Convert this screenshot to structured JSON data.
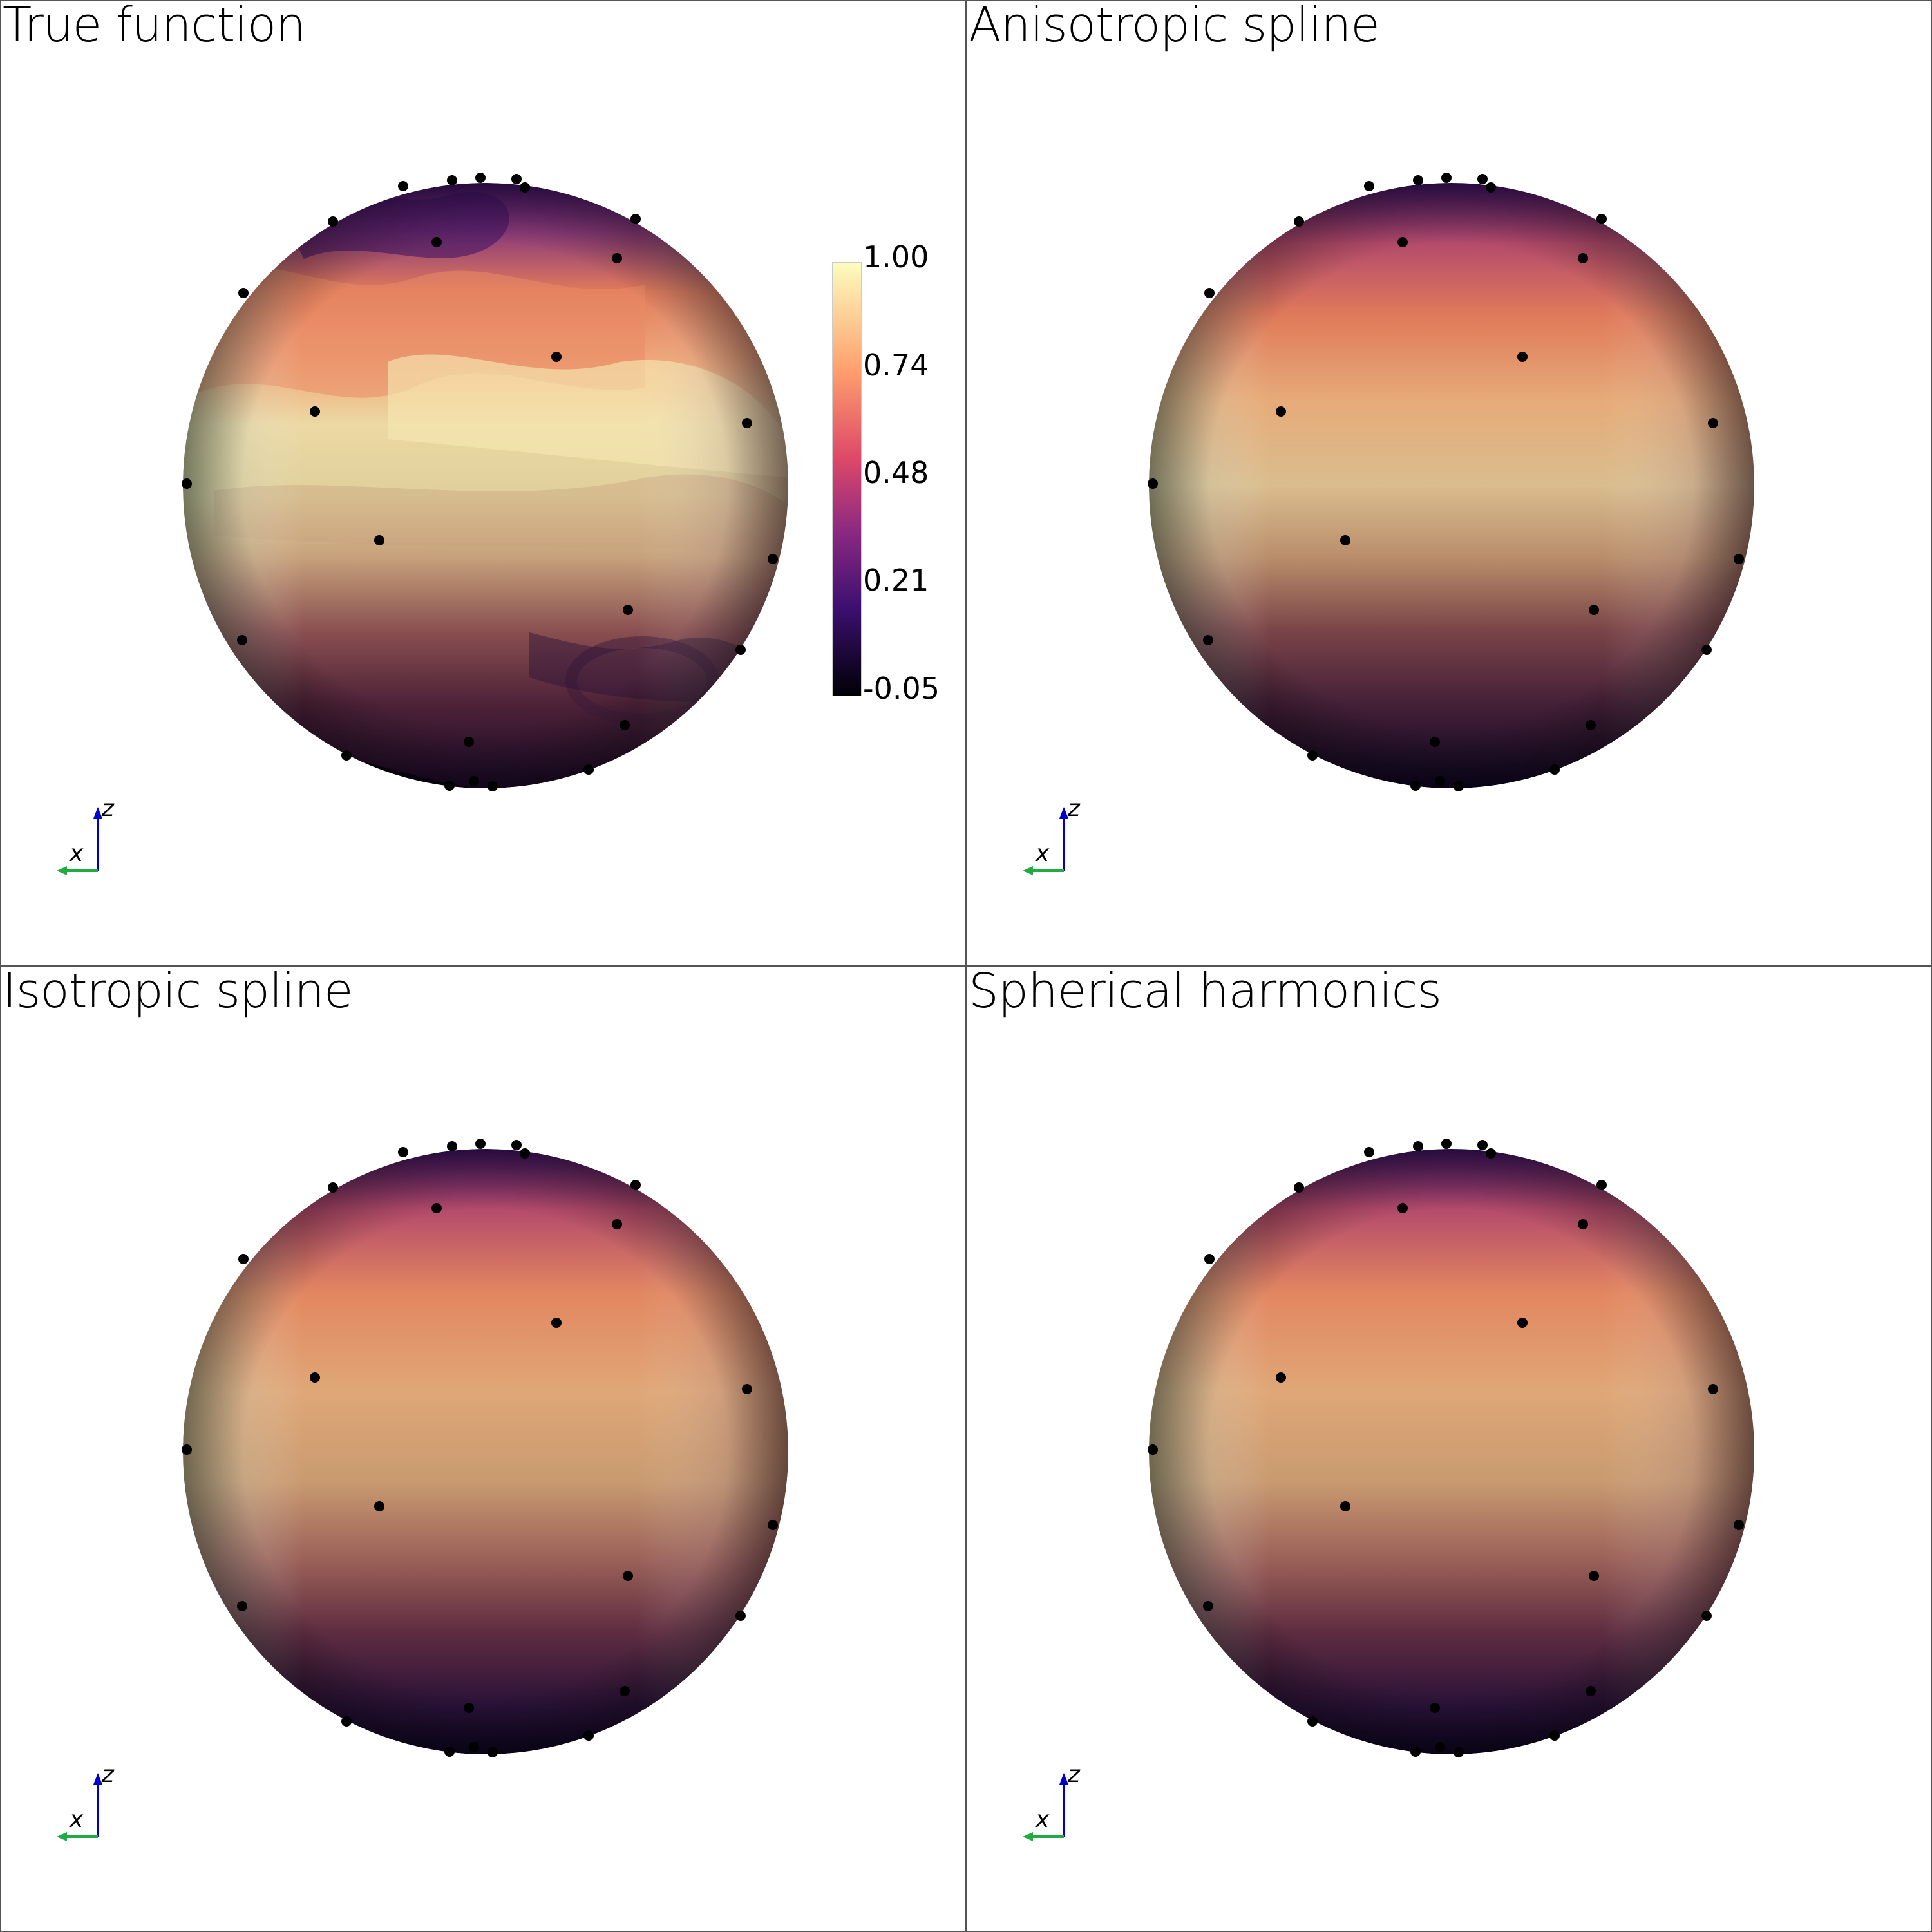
{
  "panels": [
    {
      "title": "True function",
      "variant": "true"
    },
    {
      "title": "Anisotropic spline",
      "variant": "smooth"
    },
    {
      "title": "Isotropic spline",
      "variant": "smooth2"
    },
    {
      "title": "Spherical harmonics",
      "variant": "smooth2"
    }
  ],
  "colorbar": {
    "colormap": "magma",
    "range": [
      -0.05,
      1.0
    ],
    "ticks": [
      "1.00",
      "0.74",
      "0.48",
      "0.21",
      "-0.05"
    ]
  },
  "axes_widget": {
    "z_label": "z",
    "x_label": "x"
  },
  "colors": {
    "z_axis": "#0000cc",
    "y_axis": "#22aa44",
    "x_axis_label": "#000000",
    "point": "#000000",
    "border": "#555555"
  }
}
